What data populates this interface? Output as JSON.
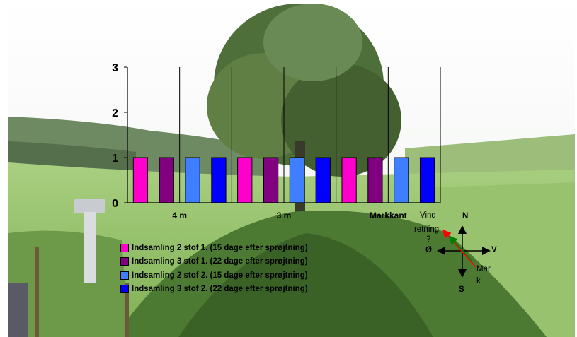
{
  "chart_data": {
    "type": "bar",
    "categories": [
      "4 m",
      "3 m",
      "Markkant"
    ],
    "series": [
      {
        "name": "Indsamling 2 stof 1. (15 dage efter sprøjtning)",
        "values": [
          1,
          1,
          1
        ],
        "color": "#ff00cc"
      },
      {
        "name": "Indsamling 3 stof 1. (22 dage efter sprøjtning)",
        "values": [
          1,
          1,
          1
        ],
        "color": "#800080"
      },
      {
        "name": "Indsamling 2 stof 2. (15 dage efter sprøjtning)",
        "values": [
          1,
          1,
          1
        ],
        "color": "#3f7fff"
      },
      {
        "name": "Indsamling 3 stof 2. (22 dage efter sprøjtning)",
        "values": [
          1,
          1,
          1
        ],
        "color": "#0000ff"
      }
    ],
    "yticks": [
      "0",
      "1",
      "2",
      "3"
    ],
    "ylim": [
      0,
      3
    ],
    "grid": "vertical category separators",
    "legend_placement": "bottom-left"
  },
  "compass": {
    "north": "N",
    "south": "S",
    "east": "V",
    "west": "Ø",
    "wind_label_line1": "Vind",
    "wind_label_line2": "retning",
    "wind_label_line3": "?",
    "field_label_line1": "Mar",
    "field_label_line2": "k",
    "wind_color": "#ff0000",
    "field_color": "#008000"
  }
}
